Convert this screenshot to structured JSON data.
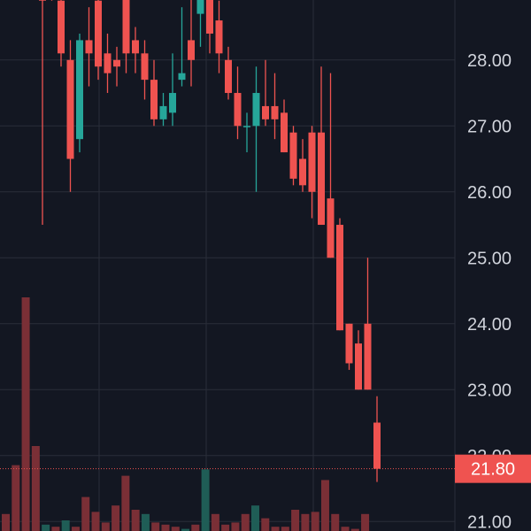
{
  "colors": {
    "background": "#131722",
    "grid": "#2a2e39",
    "up": "#26a69a",
    "down": "#ef5350",
    "volume_up": "#1f5d56",
    "volume_down": "#7a2f36",
    "axis_text": "#d1d4dc",
    "last_price_bg": "#ef5350"
  },
  "chart_data": {
    "type": "candlestick",
    "title": "",
    "xlabel": "",
    "ylabel": "",
    "ylim": [
      20.95,
      29.0
    ],
    "grid": true,
    "y_ticks": [
      "21.00",
      "22.00",
      "23.00",
      "24.00",
      "25.00",
      "26.00",
      "27.00",
      "28.00"
    ],
    "last_price": "21.80",
    "candles": [
      {
        "o": 29.6,
        "h": 30.0,
        "l": 25.5,
        "c": 28.9
      },
      {
        "o": 29.3,
        "h": 29.6,
        "l": 28.9,
        "c": 29.0
      },
      {
        "o": 28.9,
        "h": 29.1,
        "l": 27.9,
        "c": 28.1
      },
      {
        "o": 28.0,
        "h": 28.3,
        "l": 26.0,
        "c": 26.5
      },
      {
        "o": 26.8,
        "h": 28.4,
        "l": 26.6,
        "c": 28.3
      },
      {
        "o": 28.3,
        "h": 28.8,
        "l": 27.6,
        "c": 28.1
      },
      {
        "o": 28.9,
        "h": 29.0,
        "l": 27.7,
        "c": 27.9
      },
      {
        "o": 28.1,
        "h": 28.4,
        "l": 27.5,
        "c": 27.8
      },
      {
        "o": 28.0,
        "h": 28.2,
        "l": 27.6,
        "c": 27.9
      },
      {
        "o": 29.0,
        "h": 29.2,
        "l": 27.8,
        "c": 28.1
      },
      {
        "o": 28.3,
        "h": 28.5,
        "l": 27.8,
        "c": 28.1
      },
      {
        "o": 28.1,
        "h": 28.3,
        "l": 27.4,
        "c": 27.7
      },
      {
        "o": 27.7,
        "h": 28.0,
        "l": 27.0,
        "c": 27.1
      },
      {
        "o": 27.1,
        "h": 27.5,
        "l": 27.0,
        "c": 27.3
      },
      {
        "o": 27.2,
        "h": 28.1,
        "l": 27.0,
        "c": 27.5
      },
      {
        "o": 27.7,
        "h": 28.8,
        "l": 27.6,
        "c": 27.8
      },
      {
        "o": 28.3,
        "h": 29.0,
        "l": 27.6,
        "c": 28.0
      },
      {
        "o": 28.7,
        "h": 29.1,
        "l": 28.2,
        "c": 29.0
      },
      {
        "o": 29.1,
        "h": 29.3,
        "l": 28.1,
        "c": 28.4
      },
      {
        "o": 28.6,
        "h": 28.9,
        "l": 27.8,
        "c": 28.1
      },
      {
        "o": 28.0,
        "h": 28.2,
        "l": 27.4,
        "c": 27.5
      },
      {
        "o": 27.5,
        "h": 27.9,
        "l": 26.8,
        "c": 27.0
      },
      {
        "o": 27.0,
        "h": 27.2,
        "l": 26.6,
        "c": 27.0
      },
      {
        "o": 27.0,
        "h": 27.9,
        "l": 26.0,
        "c": 27.5
      },
      {
        "o": 27.3,
        "h": 28.0,
        "l": 27.0,
        "c": 27.1
      },
      {
        "o": 27.3,
        "h": 27.8,
        "l": 26.8,
        "c": 27.1
      },
      {
        "o": 27.2,
        "h": 27.4,
        "l": 26.6,
        "c": 26.6
      },
      {
        "o": 26.9,
        "h": 27.0,
        "l": 26.1,
        "c": 26.2
      },
      {
        "o": 26.5,
        "h": 26.8,
        "l": 26.0,
        "c": 26.1
      },
      {
        "o": 26.9,
        "h": 27.0,
        "l": 25.6,
        "c": 26.0
      },
      {
        "o": 26.9,
        "h": 27.9,
        "l": 25.5,
        "c": 25.5
      },
      {
        "o": 25.9,
        "h": 27.8,
        "l": 25.0,
        "c": 25.0
      },
      {
        "o": 25.5,
        "h": 25.6,
        "l": 23.9,
        "c": 23.9
      },
      {
        "o": 24.0,
        "h": 24.0,
        "l": 23.3,
        "c": 23.4
      },
      {
        "o": 23.7,
        "h": 23.9,
        "l": 23.0,
        "c": 23.0
      },
      {
        "o": 24.0,
        "h": 25.0,
        "l": 23.0,
        "c": 23.0
      },
      {
        "o": 22.5,
        "h": 22.9,
        "l": 21.6,
        "c": 21.8
      }
    ],
    "volume": [
      {
        "v": 0.4,
        "up": false
      },
      {
        "v": 1.55,
        "up": false
      },
      {
        "v": 5.5,
        "up": false
      },
      {
        "v": 2.0,
        "up": false
      },
      {
        "v": 0.15,
        "up": true
      },
      {
        "v": 0.1,
        "up": false
      },
      {
        "v": 0.25,
        "up": true
      },
      {
        "v": 0.1,
        "up": false
      },
      {
        "v": 0.8,
        "up": false
      },
      {
        "v": 0.45,
        "up": false
      },
      {
        "v": 0.2,
        "up": false
      },
      {
        "v": 0.6,
        "up": false
      },
      {
        "v": 1.3,
        "up": false
      },
      {
        "v": 0.5,
        "up": false
      },
      {
        "v": 0.4,
        "up": true
      },
      {
        "v": 0.2,
        "up": false
      },
      {
        "v": 0.15,
        "up": false
      },
      {
        "v": 0.1,
        "up": false
      },
      {
        "v": 0.05,
        "up": true
      },
      {
        "v": 0.15,
        "up": false
      },
      {
        "v": 1.45,
        "up": true
      },
      {
        "v": 0.4,
        "up": false
      },
      {
        "v": 0.15,
        "up": false
      },
      {
        "v": 0.2,
        "up": false
      },
      {
        "v": 0.4,
        "up": false
      },
      {
        "v": 0.6,
        "up": true
      },
      {
        "v": 0.3,
        "up": false
      },
      {
        "v": 0.1,
        "up": false
      },
      {
        "v": 0.1,
        "up": false
      },
      {
        "v": 0.5,
        "up": false
      },
      {
        "v": 0.4,
        "up": false
      },
      {
        "v": 0.45,
        "up": false
      },
      {
        "v": 1.2,
        "up": false
      },
      {
        "v": 0.4,
        "up": false
      },
      {
        "v": 0.1,
        "up": false
      },
      {
        "v": 0.05,
        "up": false
      },
      {
        "v": 0.4,
        "up": false
      }
    ]
  }
}
